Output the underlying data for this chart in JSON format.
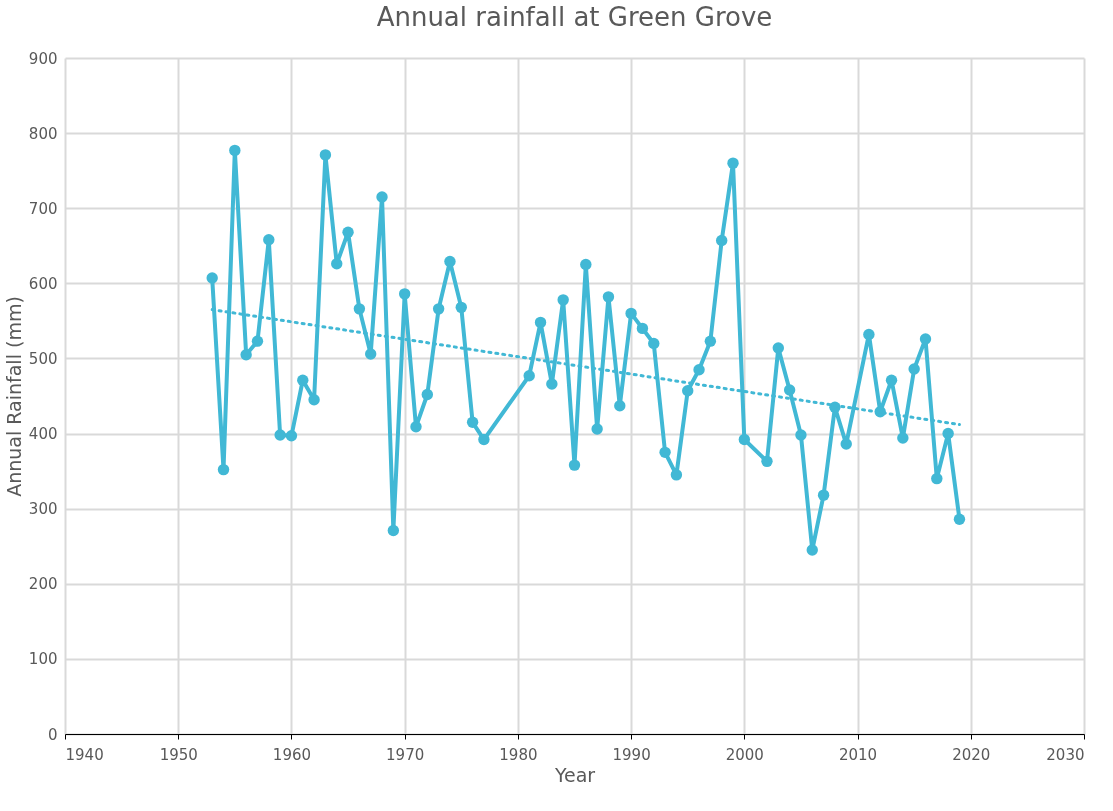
{
  "chart_data": {
    "type": "line",
    "title": "Annual rainfall at Green Grove",
    "xlabel": "Year",
    "ylabel": "Annual Rainfall (mm)",
    "xlim": [
      1940,
      2030
    ],
    "xticks": [
      1940,
      1950,
      1960,
      1970,
      1980,
      1990,
      2000,
      2010,
      2020,
      2030
    ],
    "ylim": [
      0,
      900
    ],
    "yticks": [
      0,
      100,
      200,
      300,
      400,
      500,
      600,
      700,
      800,
      900
    ],
    "grid": true,
    "series": [
      {
        "marker": "circle",
        "line_style": "solid",
        "color": "#41b8d5",
        "x": [
          1953,
          1954,
          1955,
          1956,
          1957,
          1958,
          1959,
          1960,
          1961,
          1962,
          1963,
          1964,
          1965,
          1966,
          1967,
          1968,
          1969,
          1970,
          1971,
          1972,
          1973,
          1974,
          1975,
          1976,
          1977,
          1981,
          1982,
          1983,
          1984,
          1985,
          1986,
          1987,
          1988,
          1989,
          1990,
          1991,
          1992,
          1993,
          1994,
          1995,
          1996,
          1997,
          1998,
          1999,
          2000,
          2002,
          2003,
          2004,
          2005,
          2006,
          2007,
          2008,
          2009,
          2011,
          2012,
          2013,
          2014,
          2015,
          2016,
          2017,
          2018,
          2019
        ],
        "values": [
          607,
          352,
          777,
          505,
          523,
          658,
          398,
          397,
          471,
          445,
          771,
          626,
          668,
          566,
          506,
          715,
          271,
          586,
          409,
          452,
          566,
          629,
          568,
          415,
          392,
          477,
          548,
          466,
          578,
          358,
          625,
          406,
          582,
          437,
          560,
          540,
          520,
          375,
          345,
          457,
          485,
          523,
          657,
          760,
          392,
          363,
          514,
          458,
          398,
          245,
          318,
          435,
          386,
          532,
          429,
          471,
          394,
          486,
          526,
          340,
          400,
          286
        ]
      },
      {
        "marker": "none",
        "line_style": "dotted",
        "color": "#41b8d5",
        "x": [
          1953,
          2019
        ],
        "values": [
          565,
          412
        ]
      }
    ]
  }
}
